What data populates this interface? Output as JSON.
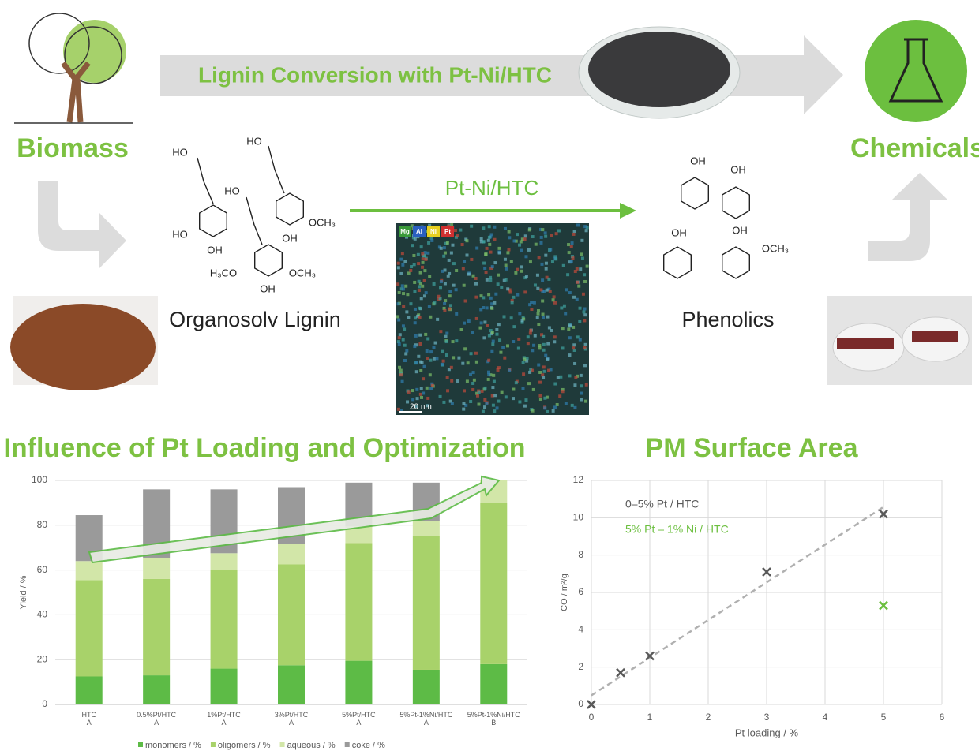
{
  "header": {
    "banner": "Lignin Conversion with Pt-Ni/HTC",
    "left": "Biomass",
    "right": "Chemicals"
  },
  "process": {
    "catalyst": "Pt-Ni/HTC",
    "feed": "Organosolv Lignin",
    "product": "Phenolics"
  },
  "edx": {
    "elements": [
      "Mg",
      "Al",
      "Ni",
      "Pt"
    ],
    "scale": "20 nm"
  },
  "lignin_labels": [
    "HO",
    "HO",
    "OH",
    "HO",
    "HO",
    "OCH₃",
    "OH",
    "H₃CO",
    "OCH₃",
    "OH"
  ],
  "phenolic_labels": [
    "OH",
    "OH",
    "OH",
    "OH",
    "OCH₃"
  ],
  "chart_data": [
    {
      "type": "bar",
      "stacked": true,
      "title": "Influence of Pt Loading and Optimization",
      "ylabel": "Yield / %",
      "categories": [
        "HTC\nA",
        "0.5%Pt/HTC\nA",
        "1%Pt/HTC\nA",
        "3%Pt/HTC\nA",
        "5%Pt/HTC\nA",
        "5%Pt-1%Ni/HTC\nA",
        "5%Pt-1%Ni/HTC\nB"
      ],
      "series": [
        {
          "name": "monomers / %",
          "color": "#5dbb46",
          "values": [
            12.5,
            13,
            16,
            17.5,
            19.5,
            15.5,
            18
          ]
        },
        {
          "name": "oligomers / %",
          "color": "#a8d26a",
          "values": [
            43,
            43,
            44,
            45,
            52.5,
            59.5,
            72
          ]
        },
        {
          "name": "aqueous / %",
          "color": "#d2e6a8",
          "values": [
            8.5,
            9.5,
            7.5,
            9,
            7.5,
            7,
            10
          ]
        },
        {
          "name": "coke / %",
          "color": "#9a9a9a",
          "values": [
            20.5,
            30.5,
            28.5,
            25.5,
            19.5,
            17,
            0
          ]
        }
      ],
      "ylim": [
        0,
        100
      ],
      "yticks": [
        0,
        20,
        40,
        60,
        80,
        100
      ],
      "grid": true,
      "legend": "bottom"
    },
    {
      "type": "scatter",
      "title": "PM Surface Area",
      "xlabel": "Pt loading / %",
      "ylabel": "CO / m²/g",
      "series": [
        {
          "name": "0–5% Pt / HTC",
          "color": "#595959",
          "x": [
            0,
            0.5,
            1,
            3,
            5
          ],
          "values": [
            0,
            1.7,
            2.6,
            7.1,
            10.2
          ],
          "trendline": true
        },
        {
          "name": "5% Pt – 1% Ni / HTC",
          "color": "#6cbf3f",
          "x": [
            5
          ],
          "values": [
            5.3
          ]
        }
      ],
      "xlim": [
        0,
        6
      ],
      "xticks": [
        0,
        1,
        2,
        3,
        4,
        5,
        6
      ],
      "ylim": [
        0,
        12
      ],
      "yticks": [
        0,
        2,
        4,
        6,
        8,
        10,
        12
      ],
      "grid": true,
      "legend": "upper left"
    }
  ]
}
